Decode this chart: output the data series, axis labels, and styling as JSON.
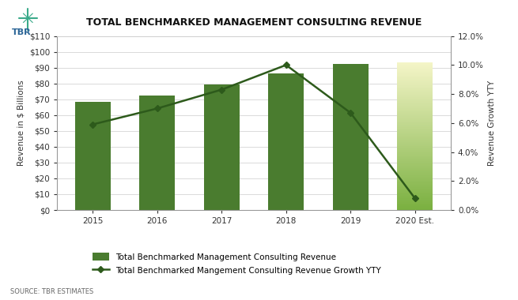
{
  "title": "TOTAL BENCHMARKED MANAGEMENT CONSULTING REVENUE",
  "categories": [
    "2015",
    "2016",
    "2017",
    "2018",
    "2019",
    "2020 Est."
  ],
  "bar_values": [
    68.5,
    72.5,
    79.5,
    86.5,
    92.5,
    93.5
  ],
  "growth_values": [
    0.059,
    0.07,
    0.083,
    0.1,
    0.067,
    0.008
  ],
  "bar_color_solid": "#4a7c2f",
  "bar_color_gradient_top": "#f5f5c8",
  "bar_color_gradient_bottom": "#7ab040",
  "line_color": "#2d5a1b",
  "bg_color": "#ffffff",
  "grid_color": "#cccccc",
  "ylabel_left": "Revenue in $ Billions",
  "ylabel_right": "Revenue Growth YTY",
  "ylim_left": [
    0,
    110
  ],
  "ylim_right": [
    0,
    0.12
  ],
  "yticks_left": [
    0,
    10,
    20,
    30,
    40,
    50,
    60,
    70,
    80,
    90,
    100,
    110
  ],
  "yticks_right": [
    0.0,
    0.02,
    0.04,
    0.06,
    0.08,
    0.1,
    0.12
  ],
  "source_text": "SOURCE: TBR ESTIMATES",
  "legend_bar_label": "Total Benchmarked Management Consulting Revenue",
  "legend_line_label": "Total Benchmarked Mangement Consulting Revenue Growth YTY",
  "tbr_color": "#2a6496",
  "tbr_star_color": "#3aaa8a"
}
